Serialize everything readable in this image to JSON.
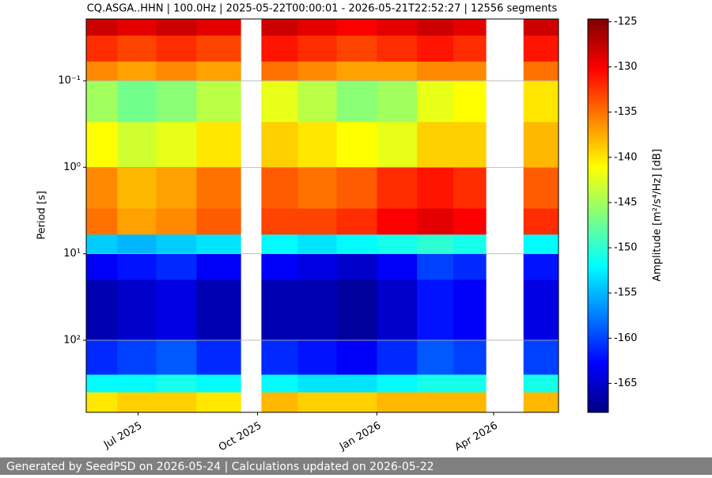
{
  "chart_data": {
    "type": "heatmap",
    "title": "CQ.ASGA..HHN | 100.0Hz | 2025-05-22T00:00:01 - 2026-05-21T22:52:27 | 12556 segments",
    "ylabel": "Period [s]",
    "colorbar_label": "Amplitude [m²/s⁴/Hz] [dB]",
    "colormap": "jet",
    "ylog": true,
    "yinvert": true,
    "grid": true,
    "xlim": [
      "2025-05-22",
      "2026-05-21"
    ],
    "xticks": [
      {
        "value": "2025-07-01",
        "label": "Jul 2025"
      },
      {
        "value": "2025-10-01",
        "label": "Oct 2025"
      },
      {
        "value": "2026-01-01",
        "label": "Jan 2026"
      },
      {
        "value": "2026-04-01",
        "label": "Apr 2026"
      }
    ],
    "ylim": [
      0.0193,
      681
    ],
    "yticks": [
      {
        "value": 0.1,
        "label": "10⁻¹"
      },
      {
        "value": 1,
        "label": "10⁰"
      },
      {
        "value": 10,
        "label": "10¹"
      },
      {
        "value": 100,
        "label": "10²"
      }
    ],
    "clim": [
      -168.2,
      -124.7
    ],
    "cticks": [
      -125,
      -130,
      -135,
      -140,
      -145,
      -150,
      -155,
      -160,
      -165
    ],
    "x_edges": [
      "2025-05-22",
      "2025-06-15",
      "2025-07-15",
      "2025-08-15",
      "2025-09-18",
      "2025-10-04",
      "2025-11-01",
      "2025-12-01",
      "2026-01-01",
      "2026-02-01",
      "2026-03-01",
      "2026-03-26",
      "2026-04-24",
      "2026-05-21"
    ],
    "y_edges": [
      0.0193,
      0.03,
      0.06,
      0.1,
      0.3,
      1,
      3,
      6,
      10,
      20,
      100,
      250,
      400,
      681
    ],
    "z": [
      [
        -128,
        -129,
        -128,
        -129,
        null,
        -128,
        -129,
        -130,
        -129,
        -128,
        -129,
        null,
        -128
      ],
      [
        -132,
        -133,
        -132,
        -133,
        null,
        -131,
        -132,
        -133,
        -132,
        -131,
        -132,
        null,
        -131
      ],
      [
        -136,
        -137,
        -136,
        -137,
        null,
        -135,
        -136,
        -137,
        -137,
        -136,
        -136,
        null,
        -135
      ],
      [
        -145,
        -147,
        -146,
        -144,
        null,
        -142,
        -144,
        -146,
        -145,
        -142,
        -141,
        null,
        -140
      ],
      [
        -141,
        -143,
        -142,
        -140,
        null,
        -139,
        -140,
        -141,
        -142,
        -139,
        -139,
        null,
        -138
      ],
      [
        -136,
        -138,
        -137,
        -135,
        null,
        -134,
        -135,
        -134,
        -132,
        -131,
        -132,
        null,
        -134
      ],
      [
        -135,
        -137,
        -136,
        -134,
        null,
        -133,
        -133,
        -132,
        -130,
        -129,
        -130,
        null,
        -132
      ],
      [
        -154,
        -155,
        -154,
        -153,
        null,
        -152,
        -153,
        -152,
        -151,
        -150,
        -151,
        null,
        -152
      ],
      [
        -163,
        -162,
        -161,
        -163,
        null,
        -163,
        -164,
        -165,
        -163,
        -160,
        -161,
        null,
        -162
      ],
      [
        -166,
        -165,
        -164,
        -166,
        null,
        -166,
        -166,
        -167,
        -165,
        -162,
        -163,
        null,
        -164
      ],
      [
        -161,
        -160,
        -159,
        -161,
        null,
        -161,
        -162,
        -163,
        -161,
        -159,
        -160,
        null,
        -160
      ],
      [
        -152,
        -152,
        -151,
        -152,
        null,
        -152,
        -153,
        -153,
        -152,
        -151,
        -151,
        null,
        -151
      ],
      [
        -140,
        -139,
        -139,
        -140,
        null,
        -138,
        -139,
        -139,
        -138,
        -138,
        -138,
        null,
        -138
      ]
    ]
  },
  "footer": {
    "text": "Generated by SeedPSD on 2026-05-24 | Calculations updated on 2026-05-22"
  }
}
